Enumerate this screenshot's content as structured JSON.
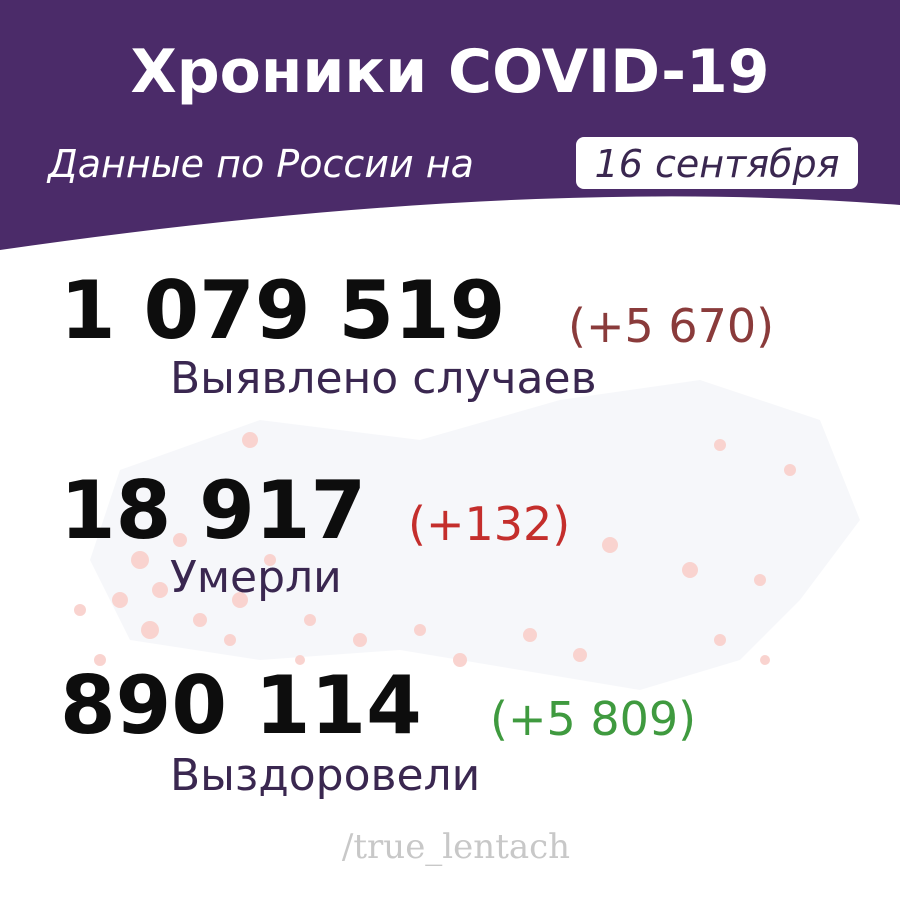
{
  "header": {
    "title": "Хроники COVID-19",
    "subtitle": "Данные по России на",
    "date": "16 сентября"
  },
  "stats": [
    {
      "value": "1 079 519",
      "delta": "(+5 670)",
      "label": "Выявлено случаев"
    },
    {
      "value": "18 917",
      "delta": "(+132)",
      "label": "Умерли"
    },
    {
      "value": "890 114",
      "delta": "(+5 809)",
      "label": "Выздоровели"
    }
  ],
  "footer": "/true_lentach"
}
